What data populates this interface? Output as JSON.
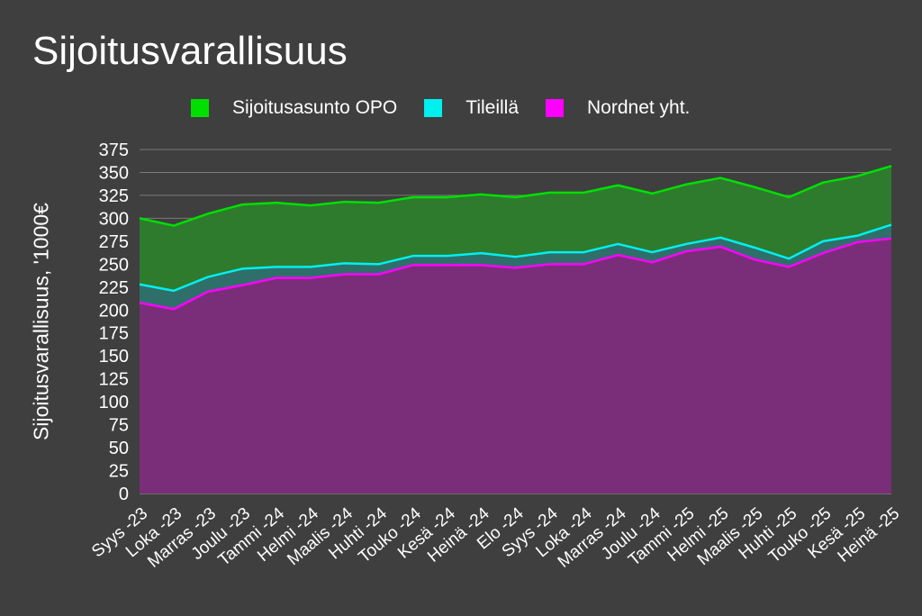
{
  "chart_data": {
    "type": "area",
    "title": "Sijoitusvarallisuus",
    "xlabel": "",
    "ylabel": "Sijoitusvarallisuus, '1000€",
    "ylim": [
      0,
      375
    ],
    "yticks": [
      0,
      25,
      50,
      75,
      100,
      125,
      150,
      175,
      200,
      225,
      250,
      275,
      300,
      325,
      350,
      375
    ],
    "grid": true,
    "legend_position": "top",
    "stacked": false,
    "categories": [
      "Syys -23",
      "Loka -23",
      "Marras -23",
      "Joulu -23",
      "Tammi -24",
      "Helmi -24",
      "Maalis -24",
      "Huhti -24",
      "Touko -24",
      "Kesä -24",
      "Heinä -24",
      "Elo -24",
      "Syys -24",
      "Loka -24",
      "Marras -24",
      "Joulu -24",
      "Tammi -25",
      "Helmi -25",
      "Maalis -25",
      "Huhti -25",
      "Touko -25",
      "Kesä -25",
      "Heinä -25"
    ],
    "series": [
      {
        "name": "Sijoitusasunto OPO",
        "color": "#00e000",
        "fill": "#2e7b2e",
        "values": [
          300,
          292,
          305,
          315,
          317,
          314,
          318,
          317,
          323,
          323,
          326,
          323,
          328,
          328,
          336,
          327,
          337,
          344,
          334,
          323,
          339,
          346,
          357
        ]
      },
      {
        "name": "Tileillä",
        "color": "#00f0f0",
        "fill": "#2f6f6a",
        "values": [
          228,
          221,
          236,
          245,
          247,
          247,
          251,
          250,
          259,
          259,
          262,
          258,
          263,
          263,
          272,
          263,
          272,
          279,
          268,
          256,
          275,
          281,
          293
        ]
      },
      {
        "name": "Nordnet yht.",
        "color": "#ff00ff",
        "fill": "#7a2e7a",
        "values": [
          208,
          201,
          220,
          227,
          235,
          235,
          239,
          239,
          249,
          249,
          249,
          246,
          250,
          250,
          260,
          252,
          264,
          269,
          255,
          247,
          262,
          274,
          278
        ]
      }
    ]
  }
}
